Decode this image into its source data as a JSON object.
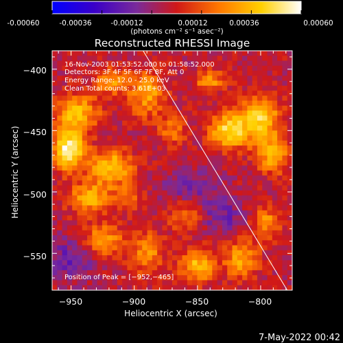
{
  "chart_data": {
    "type": "heatmap",
    "title": "Reconstructed RHESSI Image",
    "xlabel": "Heliocentric X (arcsec)",
    "ylabel": "Heliocentric Y (arcsec)",
    "xlim": [
      -965,
      -775
    ],
    "ylim": [
      -580,
      -385
    ],
    "x_ticks": [
      -950,
      -900,
      -850,
      -800
    ],
    "y_ticks": [
      -400,
      -450,
      -500,
      -550
    ],
    "x_tick_labels": [
      "−950",
      "−900",
      "−850",
      "−800"
    ],
    "y_tick_labels": [
      "−400",
      "−450",
      "−500",
      "−550"
    ],
    "colorbar": {
      "min": -0.0006,
      "max": 0.0006,
      "ticks": [
        -0.0006,
        -0.00036,
        -0.00012,
        0.00012,
        0.00036,
        0.0006
      ],
      "tick_labels": [
        "-0.00060",
        "-0.00036",
        "-0.00012",
        "0.00012",
        "0.00036",
        "0.00060"
      ],
      "unit_label": "(photons cm⁻² s⁻¹ asec⁻²)",
      "colors": [
        "#0000ff",
        "#3a00c8",
        "#7a2a9a",
        "#d01818",
        "#ff7800",
        "#ffd000",
        "#ffffff"
      ]
    },
    "info_lines": [
      "16-Nov-2003 01:53:52.000 to 01:58:52.000",
      "Detectors: 3F 4F 5F 6F 7F 8F, Att 0",
      "Energy Range: 12.0 - 25.0 keV",
      "Clean    Total counts: 3.61E+03"
    ],
    "peak_label": "Position of Peak = [−952,−465]",
    "peak": {
      "x": -952,
      "y": -465
    },
    "limb_line": [
      [
        -893,
        -385
      ],
      [
        -779,
        -580
      ]
    ],
    "sources": [
      {
        "x": -952,
        "y": -465,
        "value": 0.0006,
        "sx": 9,
        "sy": 12
      },
      {
        "x": -945,
        "y": -435,
        "value": 0.0004,
        "sx": 12,
        "sy": 10
      },
      {
        "x": -918,
        "y": -480,
        "value": 0.00045,
        "sx": 12,
        "sy": 10
      },
      {
        "x": -935,
        "y": -505,
        "value": 0.00036,
        "sx": 12,
        "sy": 9
      },
      {
        "x": -890,
        "y": -420,
        "value": 0.00036,
        "sx": 10,
        "sy": 13
      },
      {
        "x": -918,
        "y": -410,
        "value": 0.0003,
        "sx": 9,
        "sy": 8
      },
      {
        "x": -825,
        "y": -450,
        "value": 0.0005,
        "sx": 11,
        "sy": 10
      },
      {
        "x": -800,
        "y": -440,
        "value": 0.00045,
        "sx": 11,
        "sy": 13
      },
      {
        "x": -790,
        "y": -470,
        "value": 0.0004,
        "sx": 9,
        "sy": 10
      },
      {
        "x": -870,
        "y": -450,
        "value": 0.00025,
        "sx": 8,
        "sy": 8
      },
      {
        "x": -840,
        "y": -410,
        "value": 0.0003,
        "sx": 9,
        "sy": 6
      },
      {
        "x": -925,
        "y": -540,
        "value": 0.00036,
        "sx": 11,
        "sy": 9
      },
      {
        "x": -890,
        "y": -550,
        "value": 0.0003,
        "sx": 9,
        "sy": 12
      },
      {
        "x": -850,
        "y": -560,
        "value": 0.0004,
        "sx": 10,
        "sy": 10
      },
      {
        "x": -815,
        "y": -555,
        "value": 0.00036,
        "sx": 9,
        "sy": 11
      },
      {
        "x": -795,
        "y": -525,
        "value": 0.0003,
        "sx": 8,
        "sy": 9
      },
      {
        "x": -860,
        "y": -520,
        "value": 0.00025,
        "sx": 9,
        "sy": 8
      },
      {
        "x": -905,
        "y": -505,
        "value": 0.0002,
        "sx": 7,
        "sy": 7
      },
      {
        "x": -855,
        "y": -495,
        "value": -0.00015,
        "sx": 16,
        "sy": 10
      },
      {
        "x": -950,
        "y": -555,
        "value": -0.0002,
        "sx": 14,
        "sy": 12
      },
      {
        "x": -830,
        "y": -520,
        "value": -0.00018,
        "sx": 12,
        "sy": 10
      }
    ]
  },
  "footer": {
    "timestamp": "7-May-2022 00:42"
  }
}
